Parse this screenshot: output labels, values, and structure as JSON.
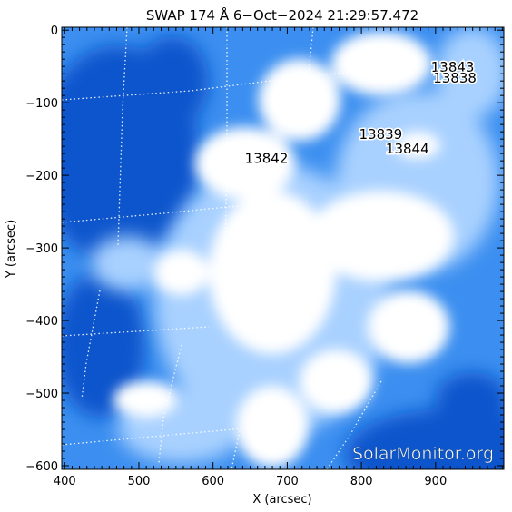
{
  "title": "SWAP 174 Å   6−Oct−2024 21:29:57.472",
  "x_axis": {
    "label": "X (arcsec)",
    "range": [
      396,
      992
    ],
    "ticks": [
      "400",
      "500",
      "600",
      "700",
      "800",
      "900"
    ],
    "tick_values": [
      400,
      500,
      600,
      700,
      800,
      900
    ]
  },
  "y_axis": {
    "label": "Y (arcsec)",
    "range": [
      -605,
      4
    ],
    "ticks": [
      "0",
      "−100",
      "−200",
      "−300",
      "−400",
      "−500",
      "−600"
    ],
    "tick_values": [
      0,
      -100,
      -200,
      -300,
      -400,
      -500,
      -600
    ]
  },
  "active_regions": [
    {
      "number": "13843",
      "x": 923,
      "y": -57
    },
    {
      "number": "13838",
      "x": 926,
      "y": -72
    },
    {
      "number": "13839",
      "x": 826,
      "y": -150
    },
    {
      "number": "13844",
      "x": 862,
      "y": -170
    },
    {
      "number": "13842",
      "x": 672,
      "y": -183
    }
  ],
  "watermark": "SolarMonitor.org",
  "colors": {
    "deep": "#0a55cc",
    "mid": "#3c8ff0",
    "light": "#a9d1ff",
    "bright": "#ffffff"
  }
}
